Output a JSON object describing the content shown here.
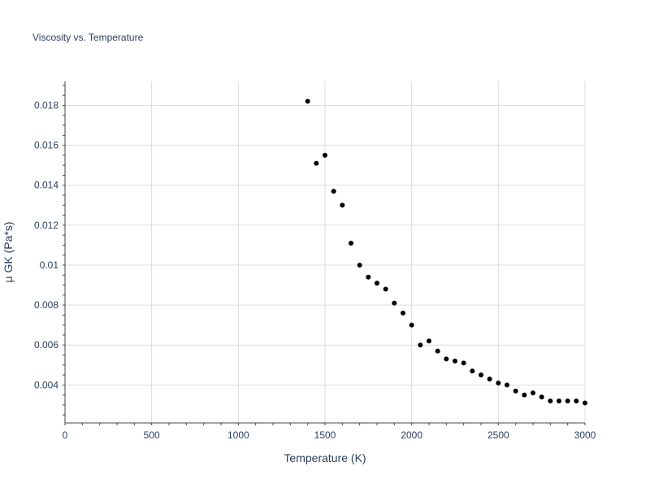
{
  "chart_data": {
    "type": "scatter",
    "title": "Viscosity vs. Temperature",
    "xlabel": "Temperature (K)",
    "ylabel": "μ GK (Pa*s)",
    "xlim": [
      0,
      3000
    ],
    "ylim": [
      0.0021,
      0.0192
    ],
    "xticks": [
      0,
      500,
      1000,
      1500,
      2000,
      2500,
      3000
    ],
    "xtick_labels": [
      "0",
      "500",
      "1000",
      "1500",
      "2000",
      "2500",
      "3000"
    ],
    "yticks": [
      0.004,
      0.006,
      0.008,
      0.01,
      0.012,
      0.014,
      0.016,
      0.018
    ],
    "ytick_labels": [
      "0.004",
      "0.006",
      "0.008",
      "0.01",
      "0.012",
      "0.014",
      "0.016",
      "0.018"
    ],
    "grid": true,
    "marker_color": "#000000",
    "series": [
      {
        "x": [
          1400,
          1450,
          1500,
          1550,
          1600,
          1650,
          1700,
          1750,
          1800,
          1850,
          1900,
          1950,
          2000,
          2050,
          2100,
          2150,
          2200,
          2250,
          2300,
          2350,
          2400,
          2450,
          2500,
          2550,
          2600,
          2650,
          2700,
          2750,
          2800,
          2850,
          2900,
          2950,
          3000
        ],
        "y": [
          0.0182,
          0.0151,
          0.0155,
          0.0137,
          0.013,
          0.0111,
          0.01,
          0.0094,
          0.0091,
          0.0088,
          0.0081,
          0.0076,
          0.007,
          0.006,
          0.0062,
          0.0057,
          0.0053,
          0.0052,
          0.0051,
          0.0047,
          0.0045,
          0.0043,
          0.0041,
          0.004,
          0.0037,
          0.0035,
          0.0036,
          0.0034,
          0.0032,
          0.0032,
          0.0032,
          0.0032,
          0.0031
        ]
      }
    ]
  }
}
